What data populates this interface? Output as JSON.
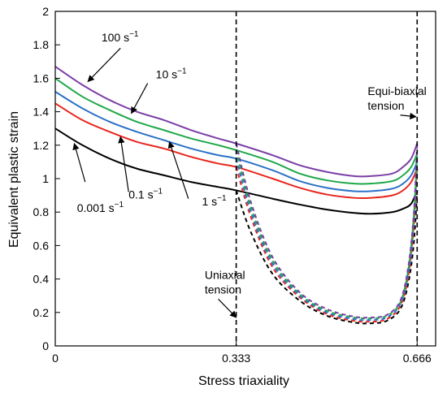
{
  "chart_data": {
    "type": "line",
    "xlabel": "Stress triaxiality",
    "ylabel": "Equivalent plastic strain",
    "xlim": [
      0,
      0.7
    ],
    "ylim": [
      0,
      2
    ],
    "x_ticks": [
      0,
      0.333,
      0.666
    ],
    "x_tick_labels": [
      "0",
      "0.333",
      "0.666"
    ],
    "y_ticks": [
      0,
      0.2,
      0.4,
      0.6,
      0.8,
      1,
      1.2,
      1.4,
      1.6,
      1.8,
      2
    ],
    "y_tick_labels": [
      "0",
      "0.2",
      "0.4",
      "0.6",
      "0.8",
      "1",
      "1.2",
      "1.4",
      "1.6",
      "1.8",
      "2"
    ],
    "grid": false,
    "series": [
      {
        "name": "0.001 s−1",
        "color": "#000000",
        "solid": {
          "x": [
            0,
            0.05,
            0.1,
            0.15,
            0.2,
            0.25,
            0.3,
            0.333,
            0.4,
            0.45,
            0.5,
            0.55,
            0.58,
            0.62,
            0.64,
            0.655,
            0.666
          ],
          "y": [
            1.3,
            1.2,
            1.12,
            1.06,
            1.02,
            0.98,
            0.95,
            0.93,
            0.88,
            0.845,
            0.815,
            0.795,
            0.79,
            0.8,
            0.82,
            0.85,
            0.93
          ]
        },
        "dashed": {
          "x": [
            0.333,
            0.36,
            0.4,
            0.45,
            0.5,
            0.55,
            0.58,
            0.61,
            0.635,
            0.65,
            0.66,
            0.666
          ],
          "y": [
            0.93,
            0.68,
            0.43,
            0.27,
            0.18,
            0.14,
            0.135,
            0.15,
            0.22,
            0.38,
            0.62,
            0.93
          ]
        }
      },
      {
        "name": "0.1 s−1",
        "color": "#e8261f",
        "solid": {
          "x": [
            0,
            0.05,
            0.1,
            0.15,
            0.2,
            0.25,
            0.3,
            0.333,
            0.4,
            0.45,
            0.5,
            0.55,
            0.58,
            0.62,
            0.64,
            0.655,
            0.666
          ],
          "y": [
            1.45,
            1.35,
            1.28,
            1.22,
            1.18,
            1.13,
            1.09,
            1.07,
            1.0,
            0.945,
            0.905,
            0.885,
            0.885,
            0.9,
            0.93,
            0.98,
            1.06
          ]
        },
        "dashed": {
          "x": [
            0.333,
            0.36,
            0.4,
            0.45,
            0.5,
            0.55,
            0.58,
            0.61,
            0.635,
            0.65,
            0.66,
            0.666
          ],
          "y": [
            1.07,
            0.77,
            0.47,
            0.29,
            0.19,
            0.15,
            0.145,
            0.16,
            0.24,
            0.42,
            0.72,
            1.06
          ]
        }
      },
      {
        "name": "1 s−1",
        "color": "#2c72c7",
        "solid": {
          "x": [
            0,
            0.05,
            0.1,
            0.15,
            0.2,
            0.25,
            0.3,
            0.333,
            0.4,
            0.45,
            0.5,
            0.55,
            0.58,
            0.62,
            0.64,
            0.655,
            0.666
          ],
          "y": [
            1.52,
            1.42,
            1.34,
            1.28,
            1.23,
            1.18,
            1.14,
            1.12,
            1.05,
            0.985,
            0.945,
            0.925,
            0.925,
            0.94,
            0.97,
            1.02,
            1.1
          ]
        },
        "dashed": {
          "x": [
            0.333,
            0.36,
            0.4,
            0.45,
            0.5,
            0.55,
            0.58,
            0.61,
            0.635,
            0.65,
            0.66,
            0.666
          ],
          "y": [
            1.12,
            0.8,
            0.49,
            0.3,
            0.2,
            0.16,
            0.155,
            0.17,
            0.25,
            0.44,
            0.75,
            1.1
          ]
        }
      },
      {
        "name": "10 s−1",
        "color": "#1fa84a",
        "solid": {
          "x": [
            0,
            0.05,
            0.1,
            0.15,
            0.2,
            0.25,
            0.3,
            0.333,
            0.4,
            0.45,
            0.5,
            0.55,
            0.58,
            0.62,
            0.64,
            0.655,
            0.666
          ],
          "y": [
            1.6,
            1.49,
            1.41,
            1.34,
            1.29,
            1.24,
            1.2,
            1.17,
            1.1,
            1.03,
            0.99,
            0.97,
            0.97,
            0.985,
            1.02,
            1.07,
            1.15
          ]
        },
        "dashed": {
          "x": [
            0.333,
            0.36,
            0.4,
            0.45,
            0.5,
            0.55,
            0.58,
            0.61,
            0.635,
            0.65,
            0.66,
            0.666
          ],
          "y": [
            1.17,
            0.83,
            0.51,
            0.31,
            0.21,
            0.17,
            0.165,
            0.18,
            0.26,
            0.46,
            0.78,
            1.15
          ]
        }
      },
      {
        "name": "100 s−1",
        "color": "#7b3fa8",
        "solid": {
          "x": [
            0,
            0.05,
            0.1,
            0.15,
            0.2,
            0.25,
            0.3,
            0.333,
            0.4,
            0.45,
            0.5,
            0.55,
            0.58,
            0.62,
            0.64,
            0.655,
            0.666
          ],
          "y": [
            1.67,
            1.56,
            1.47,
            1.4,
            1.35,
            1.29,
            1.24,
            1.21,
            1.14,
            1.08,
            1.04,
            1.015,
            1.015,
            1.03,
            1.07,
            1.12,
            1.21
          ]
        },
        "dashed": {
          "x": [
            0.333,
            0.36,
            0.4,
            0.45,
            0.5,
            0.55,
            0.58,
            0.61,
            0.635,
            0.65,
            0.66,
            0.666
          ],
          "y": [
            1.21,
            0.86,
            0.53,
            0.32,
            0.22,
            0.175,
            0.17,
            0.185,
            0.27,
            0.48,
            0.8,
            1.21
          ]
        }
      }
    ],
    "reference_lines": [
      {
        "x": 0.333,
        "style": "dashed"
      },
      {
        "x": 0.666,
        "style": "dashed"
      }
    ],
    "annotations": [
      {
        "id": "rate-100",
        "base": "100 s",
        "sup": "−1",
        "text_x": 0.085,
        "text_y": 1.82,
        "arrow_from": [
          0.12,
          1.78
        ],
        "arrow_to": [
          0.06,
          1.58
        ]
      },
      {
        "id": "rate-10",
        "base": "10 s",
        "sup": "−1",
        "text_x": 0.185,
        "text_y": 1.6,
        "arrow_from": [
          0.17,
          1.57
        ],
        "arrow_to": [
          0.14,
          1.39
        ]
      },
      {
        "id": "rate-01",
        "base": "0.1 s",
        "sup": "−1",
        "text_x": 0.135,
        "text_y": 0.88,
        "arrow_from": [
          0.135,
          0.92
        ],
        "arrow_to": [
          0.12,
          1.25
        ]
      },
      {
        "id": "rate-1",
        "base": "1 s",
        "sup": "−1",
        "text_x": 0.27,
        "text_y": 0.84,
        "arrow_from": [
          0.245,
          0.88
        ],
        "arrow_to": [
          0.21,
          1.22
        ]
      },
      {
        "id": "rate-0001",
        "base": "0.001 s",
        "sup": "−1",
        "text_x": 0.04,
        "text_y": 0.8,
        "arrow_from": [
          0.055,
          0.98
        ],
        "arrow_to": [
          0.035,
          1.21
        ]
      },
      {
        "id": "uniaxial",
        "lines": [
          "Uniaxial",
          "tension"
        ],
        "text_x": 0.275,
        "text_y": 0.4,
        "arrow_from": [
          0.3,
          0.28
        ],
        "arrow_to": [
          0.333,
          0.17
        ]
      },
      {
        "id": "equibiaxial",
        "lines": [
          "Equi-biaxial",
          "tension"
        ],
        "text_x": 0.575,
        "text_y": 1.5,
        "arrow_from": [
          0.635,
          1.38
        ],
        "arrow_to": [
          0.664,
          1.37
        ]
      }
    ]
  }
}
